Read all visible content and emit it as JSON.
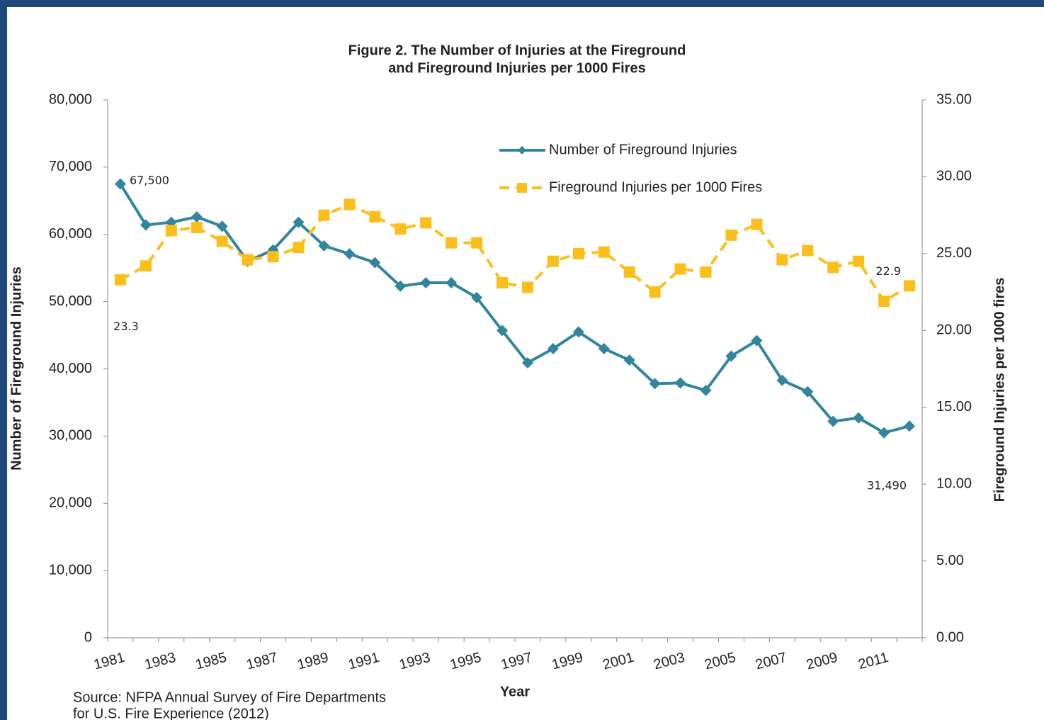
{
  "chart_data": {
    "type": "line",
    "title": [
      "Figure 2. The Number of Injuries at the Fireground",
      "and Fireground Injuries per 1000 Fires"
    ],
    "xlabel": "Year",
    "ylabel": "Number of Fireground Injuries",
    "y2label": "Fireground Injuries per 1000 fires",
    "source": [
      "Source: NFPA Annual Survey of Fire Departments",
      "for U.S. Fire Experience (2012)"
    ],
    "categories": [
      "1981",
      null,
      "1983",
      null,
      "1985",
      null,
      "1987",
      null,
      "1989",
      null,
      "1991",
      null,
      "1993",
      null,
      "1995",
      null,
      "1997",
      null,
      "1999",
      null,
      "2001",
      null,
      "2003",
      null,
      "2005",
      null,
      "2007",
      null,
      "2009",
      null,
      "2011",
      null
    ],
    "series": [
      {
        "name": "Number of Fireground Injuries",
        "color": "#31859c",
        "marker": "diamond",
        "dashed": false,
        "values": [
          67500,
          61400,
          61800,
          62600,
          61200,
          56000,
          57700,
          61800,
          58300,
          57100,
          55800,
          52300,
          52800,
          52800,
          50600,
          45700,
          40900,
          43000,
          45500,
          43000,
          41300,
          37800,
          37900,
          36800,
          41900,
          44200,
          38300,
          36600,
          32200,
          32700,
          30500,
          31490
        ],
        "value_labels": [
          "67,500",
          null,
          null,
          null,
          null,
          null,
          null,
          null,
          null,
          null,
          null,
          null,
          null,
          null,
          null,
          null,
          null,
          null,
          null,
          null,
          null,
          null,
          null,
          null,
          null,
          null,
          null,
          null,
          null,
          null,
          null,
          "31,490"
        ]
      },
      {
        "name": "Fireground Injuries per 1000 Fires",
        "color": "#fbbf1b",
        "marker": "square",
        "dashed": true,
        "axis": "y2",
        "values": [
          23.3,
          24.2,
          26.5,
          26.7,
          25.8,
          24.6,
          24.8,
          25.4,
          27.5,
          28.2,
          27.4,
          26.6,
          27.0,
          25.7,
          25.7,
          23.1,
          22.8,
          24.5,
          25.0,
          25.1,
          23.8,
          22.5,
          24.0,
          23.8,
          26.2,
          26.9,
          24.6,
          25.2,
          24.1,
          24.5,
          21.9,
          22.9
        ],
        "value_labels": [
          "23.3",
          null,
          null,
          null,
          null,
          null,
          null,
          null,
          null,
          null,
          null,
          null,
          null,
          null,
          null,
          null,
          null,
          null,
          null,
          null,
          null,
          null,
          null,
          null,
          null,
          null,
          null,
          null,
          null,
          null,
          null,
          "22.9"
        ]
      }
    ],
    "ylim": [
      0,
      80000
    ],
    "yticks": [
      0,
      {
        "value": 10000,
        "label": "10,000"
      },
      {
        "value": 20000,
        "label": "20,000"
      },
      {
        "value": 30000,
        "label": "30,000"
      },
      {
        "value": 40000,
        "label": "40,000"
      },
      {
        "value": 50000,
        "label": "50,000"
      },
      {
        "value": 60000,
        "label": "60,000"
      },
      {
        "value": 70000,
        "label": "70,000"
      },
      {
        "value": 80000,
        "label": "80,000"
      }
    ],
    "y2lim": [
      0,
      35
    ],
    "y2ticks": [
      {
        "value": 0,
        "label": "0.00"
      },
      {
        "value": 5,
        "label": "5.00"
      },
      {
        "value": 10,
        "label": "10.00"
      },
      {
        "value": 15,
        "label": "15.00"
      },
      {
        "value": 20,
        "label": "20.00"
      },
      {
        "value": 25,
        "label": "25.00"
      },
      {
        "value": 30,
        "label": "30.00"
      },
      {
        "value": 35,
        "label": "35.00"
      }
    ],
    "grid": false,
    "legend": "upper right"
  }
}
